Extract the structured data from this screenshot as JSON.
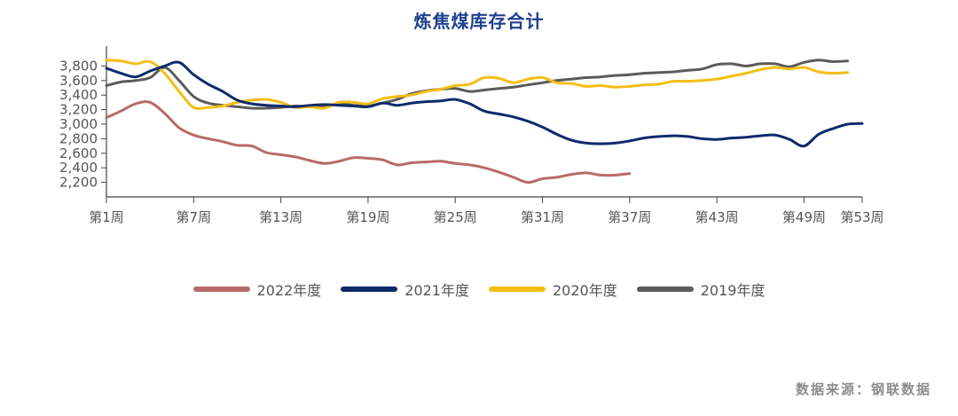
{
  "chart_data": {
    "type": "line",
    "title": "炼焦煤库存合计",
    "xlabel": "",
    "ylabel": "",
    "ylim": [
      2000,
      4000
    ],
    "xlim": [
      1,
      53
    ],
    "yticks": [
      2200,
      2400,
      2600,
      2800,
      3000,
      3200,
      3400,
      3600,
      3800
    ],
    "ytick_labels": [
      "2,200",
      "2,400",
      "2,600",
      "2,800",
      "3,000",
      "3,200",
      "3,400",
      "3,600",
      "3,800"
    ],
    "xticks": [
      1,
      7,
      13,
      19,
      25,
      31,
      37,
      43,
      49,
      53
    ],
    "xtick_labels": [
      "第1周",
      "第7周",
      "第13周",
      "第19周",
      "第25周",
      "第31周",
      "第37周",
      "第43周",
      "第49周",
      "第53周"
    ],
    "legend_position": "bottom-center",
    "grid": false,
    "series": [
      {
        "name": "2022年度",
        "color": "#b96a68",
        "x": [
          1,
          2,
          3,
          4,
          5,
          6,
          7,
          8,
          9,
          10,
          11,
          12,
          13,
          14,
          15,
          16,
          17,
          18,
          19,
          20,
          21,
          22,
          23,
          24,
          25,
          26,
          27,
          28,
          29,
          30,
          31,
          32,
          33,
          34,
          35,
          36,
          37
        ],
        "values": [
          3090,
          3180,
          3280,
          3300,
          3150,
          2950,
          2850,
          2800,
          2760,
          2710,
          2700,
          2610,
          2580,
          2550,
          2500,
          2460,
          2490,
          2540,
          2530,
          2510,
          2440,
          2470,
          2480,
          2490,
          2460,
          2440,
          2400,
          2340,
          2270,
          2200,
          2250,
          2270,
          2310,
          2330,
          2300,
          2300,
          2320
        ]
      },
      {
        "name": "2021年度",
        "color": "#0d2b6b",
        "x": [
          1,
          2,
          3,
          4,
          5,
          6,
          7,
          8,
          9,
          10,
          11,
          12,
          13,
          14,
          15,
          16,
          17,
          18,
          19,
          20,
          21,
          22,
          23,
          24,
          25,
          26,
          27,
          28,
          29,
          30,
          31,
          32,
          33,
          34,
          35,
          36,
          37,
          38,
          39,
          40,
          41,
          42,
          43,
          44,
          45,
          46,
          47,
          48,
          49,
          50,
          51,
          52,
          53
        ],
        "values": [
          3770,
          3700,
          3650,
          3730,
          3800,
          3850,
          3680,
          3550,
          3450,
          3330,
          3280,
          3260,
          3250,
          3240,
          3260,
          3270,
          3260,
          3250,
          3240,
          3290,
          3260,
          3290,
          3310,
          3320,
          3340,
          3280,
          3180,
          3140,
          3100,
          3040,
          2960,
          2860,
          2780,
          2740,
          2730,
          2740,
          2770,
          2810,
          2830,
          2840,
          2830,
          2800,
          2790,
          2810,
          2820,
          2840,
          2850,
          2790,
          2700,
          2860,
          2940,
          3000,
          3010
        ]
      },
      {
        "name": "2020年度",
        "color": "#f5bd14",
        "x": [
          1,
          2,
          3,
          4,
          5,
          6,
          7,
          8,
          9,
          10,
          11,
          12,
          13,
          14,
          15,
          16,
          17,
          18,
          19,
          20,
          21,
          22,
          23,
          24,
          25,
          26,
          27,
          28,
          29,
          30,
          31,
          32,
          33,
          34,
          35,
          36,
          37,
          38,
          39,
          40,
          41,
          42,
          43,
          44,
          45,
          46,
          47,
          48,
          49,
          50,
          51,
          52
        ],
        "values": [
          3880,
          3870,
          3830,
          3860,
          3700,
          3450,
          3230,
          3230,
          3250,
          3300,
          3330,
          3340,
          3300,
          3230,
          3240,
          3220,
          3300,
          3300,
          3280,
          3350,
          3380,
          3400,
          3450,
          3480,
          3530,
          3550,
          3640,
          3630,
          3570,
          3620,
          3640,
          3570,
          3560,
          3520,
          3530,
          3510,
          3520,
          3540,
          3550,
          3590,
          3590,
          3600,
          3620,
          3660,
          3700,
          3750,
          3780,
          3760,
          3780,
          3720,
          3700,
          3710
        ]
      },
      {
        "name": "2019年度",
        "color": "#5b5b5b",
        "x": [
          1,
          2,
          3,
          4,
          5,
          6,
          7,
          8,
          9,
          10,
          11,
          12,
          13,
          14,
          15,
          16,
          17,
          18,
          19,
          20,
          21,
          22,
          23,
          24,
          25,
          26,
          27,
          28,
          29,
          30,
          31,
          32,
          33,
          34,
          35,
          36,
          37,
          38,
          39,
          40,
          41,
          42,
          43,
          44,
          45,
          46,
          47,
          48,
          49,
          50,
          51,
          52
        ],
        "values": [
          3530,
          3580,
          3600,
          3640,
          3780,
          3600,
          3380,
          3290,
          3260,
          3240,
          3220,
          3220,
          3230,
          3250,
          3240,
          3240,
          3280,
          3260,
          3250,
          3290,
          3340,
          3420,
          3460,
          3480,
          3490,
          3450,
          3470,
          3490,
          3510,
          3540,
          3570,
          3600,
          3620,
          3640,
          3650,
          3670,
          3680,
          3700,
          3710,
          3720,
          3740,
          3760,
          3820,
          3830,
          3800,
          3830,
          3830,
          3790,
          3850,
          3880,
          3860,
          3870
        ]
      }
    ],
    "source_note": "数据来源：钢联数据"
  }
}
